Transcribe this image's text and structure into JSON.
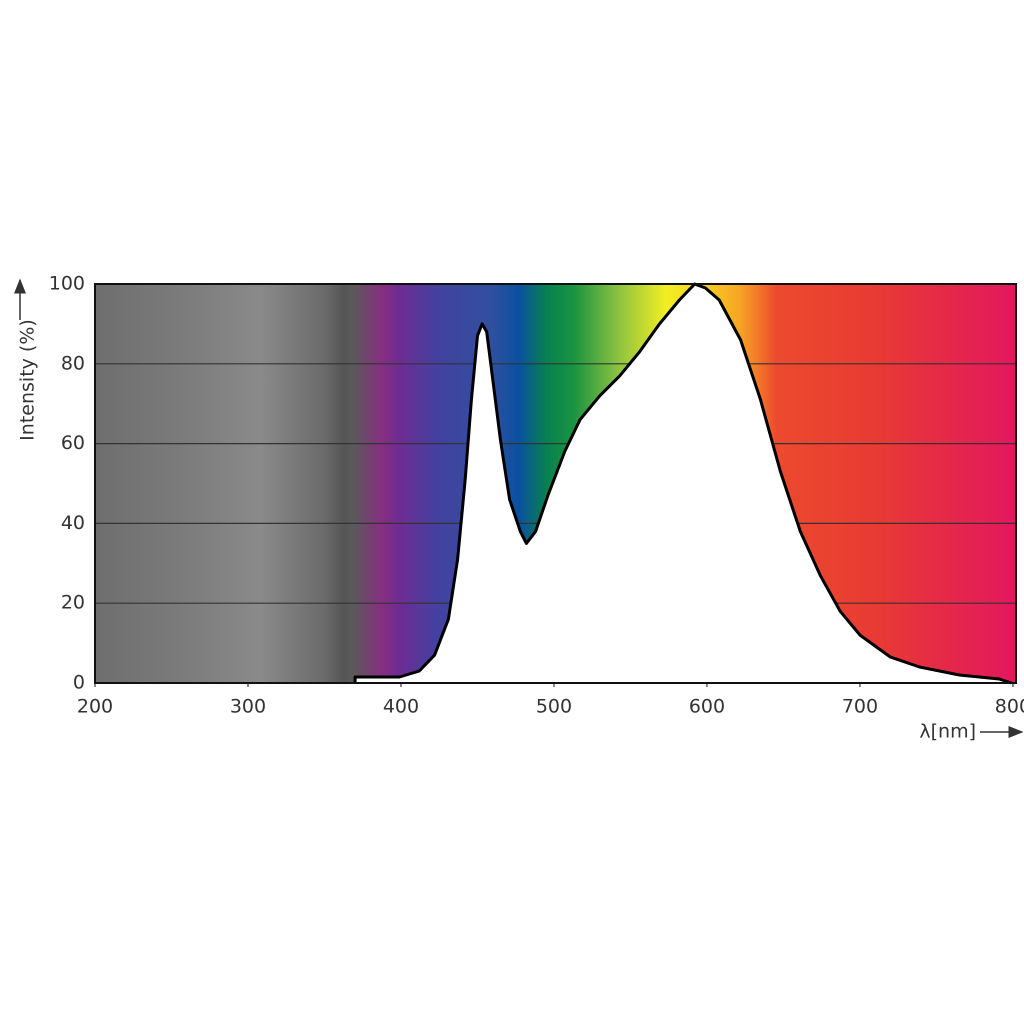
{
  "chart_data": {
    "type": "area",
    "x_label": "λ[nm]",
    "y_label": "Intensity (%)",
    "x": [
      370,
      370,
      399,
      412,
      422,
      431,
      437,
      442,
      446,
      450,
      453,
      456,
      460,
      465,
      471,
      478,
      482,
      488,
      496,
      507,
      517,
      530,
      543,
      556,
      569,
      582,
      592,
      599,
      608,
      622,
      635,
      648,
      661,
      674,
      687,
      700,
      720,
      739,
      765,
      791,
      799
    ],
    "values": [
      0,
      1.5,
      1.5,
      3,
      7,
      16,
      31,
      51,
      71,
      87,
      90,
      88,
      76,
      61,
      46,
      38,
      35,
      38,
      47,
      58,
      66,
      72,
      77,
      83,
      90,
      96,
      100,
      99,
      96,
      86,
      71,
      53,
      38,
      27,
      18,
      12,
      6.5,
      4,
      2,
      1,
      0
    ],
    "color": "#000000",
    "fill": "#ffffff",
    "xlim": [
      200,
      802
    ],
    "xticks": [
      200,
      300,
      400,
      500,
      600,
      700,
      800
    ],
    "ylim": [
      0,
      100
    ],
    "yticks": [
      0,
      20,
      40,
      60,
      80,
      100
    ],
    "grid": true
  }
}
